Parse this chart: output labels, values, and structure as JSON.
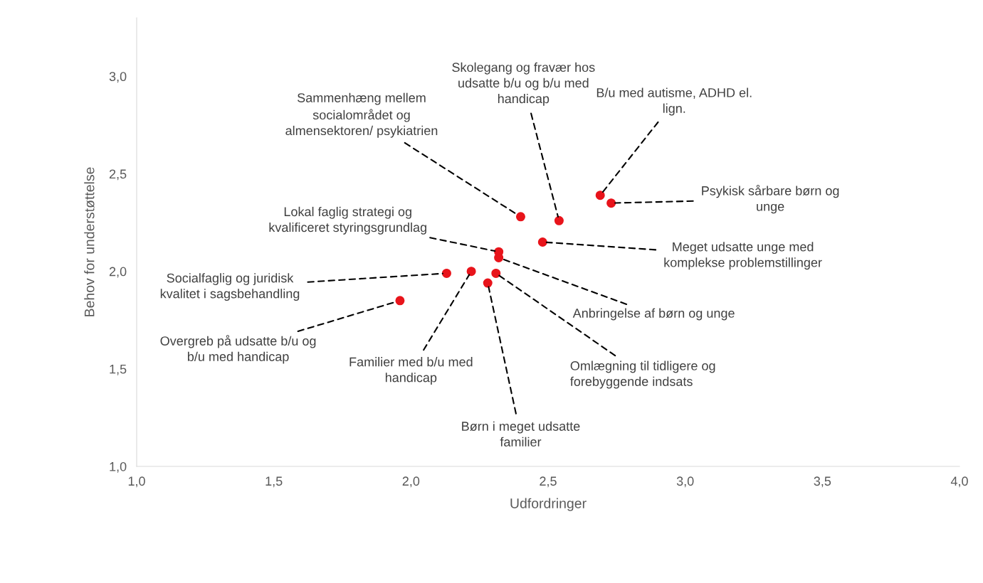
{
  "chart_data": {
    "type": "scatter",
    "xlabel": "Udfordringer",
    "ylabel": "Behov for understøttelse",
    "x": [
      2.69,
      2.73,
      2.4,
      2.54,
      2.48,
      2.32,
      2.32,
      2.13,
      2.22,
      2.31,
      2.28,
      1.96
    ],
    "values": [
      2.39,
      2.35,
      2.28,
      2.26,
      2.15,
      2.1,
      2.07,
      1.99,
      2.0,
      1.99,
      1.94,
      1.85
    ],
    "color": "#e8141b",
    "marker": "circle",
    "grid": false,
    "legend": false,
    "xlim": [
      1.0,
      4.0
    ],
    "xticks": [
      {
        "value": 1.0,
        "label": "1,0"
      },
      {
        "value": 1.5,
        "label": "1,5"
      },
      {
        "value": 2.0,
        "label": "2,0"
      },
      {
        "value": 2.5,
        "label": "2,5"
      },
      {
        "value": 3.0,
        "label": "3,0"
      },
      {
        "value": 3.5,
        "label": "3,5"
      },
      {
        "value": 4.0,
        "label": "4,0"
      }
    ],
    "ylim": [
      1.0,
      3.3
    ],
    "yticks": [
      {
        "value": 1.0,
        "label": "1,0"
      },
      {
        "value": 1.5,
        "label": "1,5"
      },
      {
        "value": 2.0,
        "label": "2,0"
      },
      {
        "value": 2.5,
        "label": "2,5"
      },
      {
        "value": 3.0,
        "label": "3,0"
      }
    ],
    "annotations": [
      {
        "text": "B/u med autisme, ADHD el.\nlign.",
        "x": 2.69,
        "y": 2.39
      },
      {
        "text": "Psykisk sårbare børn og\nunge",
        "x": 2.73,
        "y": 2.35
      },
      {
        "text": "Sammenhæng mellem\nsocialområdet og\nalmensektoren/ psykiatrien",
        "x": 2.4,
        "y": 2.28
      },
      {
        "text": "Skolegang og fravær hos\nudsatte b/u og b/u med\nhandicap",
        "x": 2.54,
        "y": 2.26
      },
      {
        "text": "Meget udsatte unge med\nkomplekse problemstillinger",
        "x": 2.48,
        "y": 2.15
      },
      {
        "text": "Lokal faglig strategi og\nkvalificeret styringsgrundlag",
        "x": 2.32,
        "y": 2.1
      },
      {
        "text": "Anbringelse af børn og unge",
        "x": 2.32,
        "y": 2.07
      },
      {
        "text": "Socialfaglig og juridisk\nkvalitet i sagsbehandling",
        "x": 2.13,
        "y": 1.99
      },
      {
        "text": "Familier med b/u med\nhandicap",
        "x": 2.22,
        "y": 2.0
      },
      {
        "text": "Omlægning til tidligere og\nforebyggende indsats",
        "x": 2.31,
        "y": 1.99
      },
      {
        "text": "Børn i meget udsatte\nfamilier",
        "x": 2.28,
        "y": 1.94
      },
      {
        "text": "Overgreb på udsatte b/u og\nb/u med handicap",
        "x": 1.96,
        "y": 1.85
      }
    ]
  }
}
